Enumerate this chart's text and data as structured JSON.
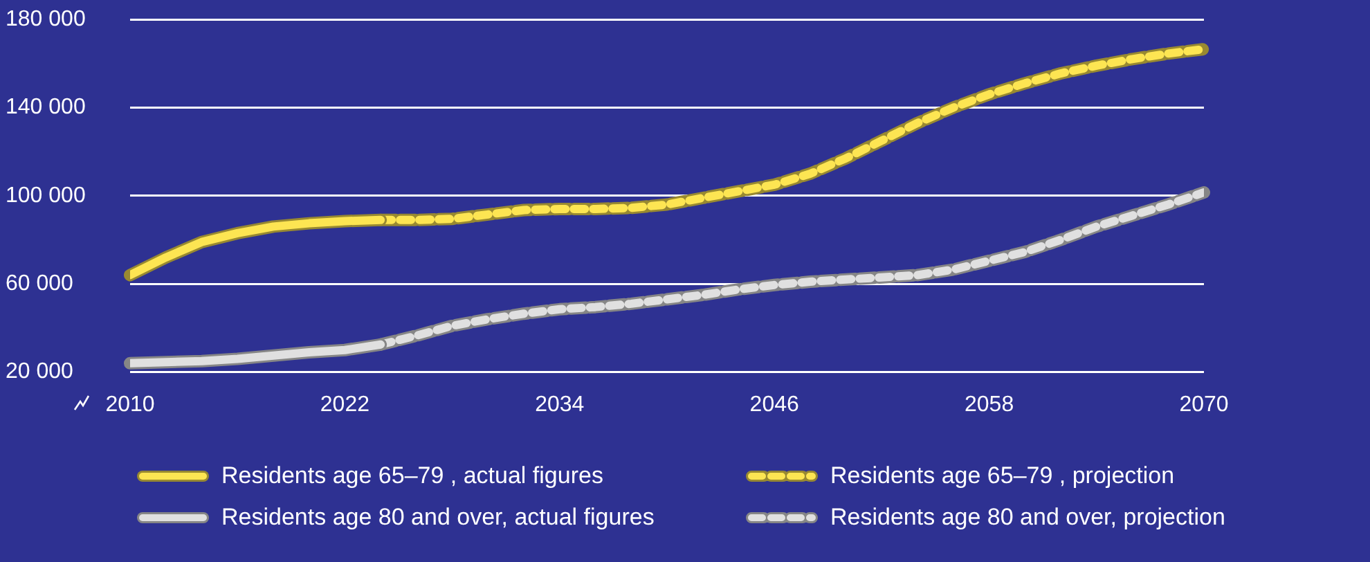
{
  "chart_data": {
    "type": "line",
    "xlim": [
      2010,
      2070
    ],
    "xticks": [
      2010,
      2022,
      2034,
      2046,
      2058,
      2070
    ],
    "ylim": [
      20000,
      180000
    ],
    "yticks": [
      {
        "value": 20000,
        "label": "20 000"
      },
      {
        "value": 60000,
        "label": "60 000"
      },
      {
        "value": 100000,
        "label": "100 000"
      },
      {
        "value": 140000,
        "label": "140 000"
      },
      {
        "value": 180000,
        "label": "180 000"
      }
    ],
    "grid": "y",
    "legend": "bottom",
    "marker": "none",
    "series": [
      {
        "name": "Residents age 65–79 , actual figures",
        "color": "#fde552",
        "line_style": "solid",
        "x": [
          2010,
          2012,
          2014,
          2016,
          2018,
          2020,
          2022,
          2024
        ],
        "values": [
          64000,
          72000,
          79000,
          83000,
          86000,
          87500,
          88500,
          89000
        ]
      },
      {
        "name": "Residents age 65–79 , projection",
        "color": "#fde552",
        "line_style": "dashed",
        "x": [
          2024,
          2026,
          2028,
          2030,
          2032,
          2034,
          2036,
          2038,
          2040,
          2042,
          2044,
          2046,
          2048,
          2050,
          2052,
          2054,
          2056,
          2058,
          2060,
          2062,
          2064,
          2066,
          2068,
          2070
        ],
        "values": [
          89000,
          89000,
          89500,
          91500,
          93500,
          94000,
          94000,
          94500,
          96000,
          99000,
          102000,
          105000,
          110000,
          117000,
          125000,
          133000,
          140000,
          146000,
          151000,
          155500,
          159000,
          162000,
          164500,
          166500
        ]
      },
      {
        "name": "Residents age 80 and over, actual figures",
        "color": "#e0e0e0",
        "line_style": "solid",
        "x": [
          2010,
          2012,
          2014,
          2016,
          2018,
          2020,
          2022,
          2024
        ],
        "values": [
          24000,
          24500,
          25000,
          26000,
          27500,
          29000,
          30000,
          32500
        ]
      },
      {
        "name": "Residents age 80 and over, projection",
        "color": "#e0e0e0",
        "line_style": "dashed",
        "x": [
          2024,
          2026,
          2028,
          2030,
          2032,
          2034,
          2036,
          2038,
          2040,
          2042,
          2044,
          2046,
          2048,
          2050,
          2052,
          2054,
          2056,
          2058,
          2060,
          2062,
          2064,
          2066,
          2068,
          2070
        ],
        "values": [
          32500,
          36500,
          41000,
          44000,
          46500,
          48500,
          49500,
          51000,
          53000,
          55000,
          57500,
          59500,
          61000,
          62000,
          63000,
          64000,
          66500,
          70500,
          74500,
          80000,
          86000,
          91000,
          96000,
          101500
        ]
      }
    ]
  }
}
